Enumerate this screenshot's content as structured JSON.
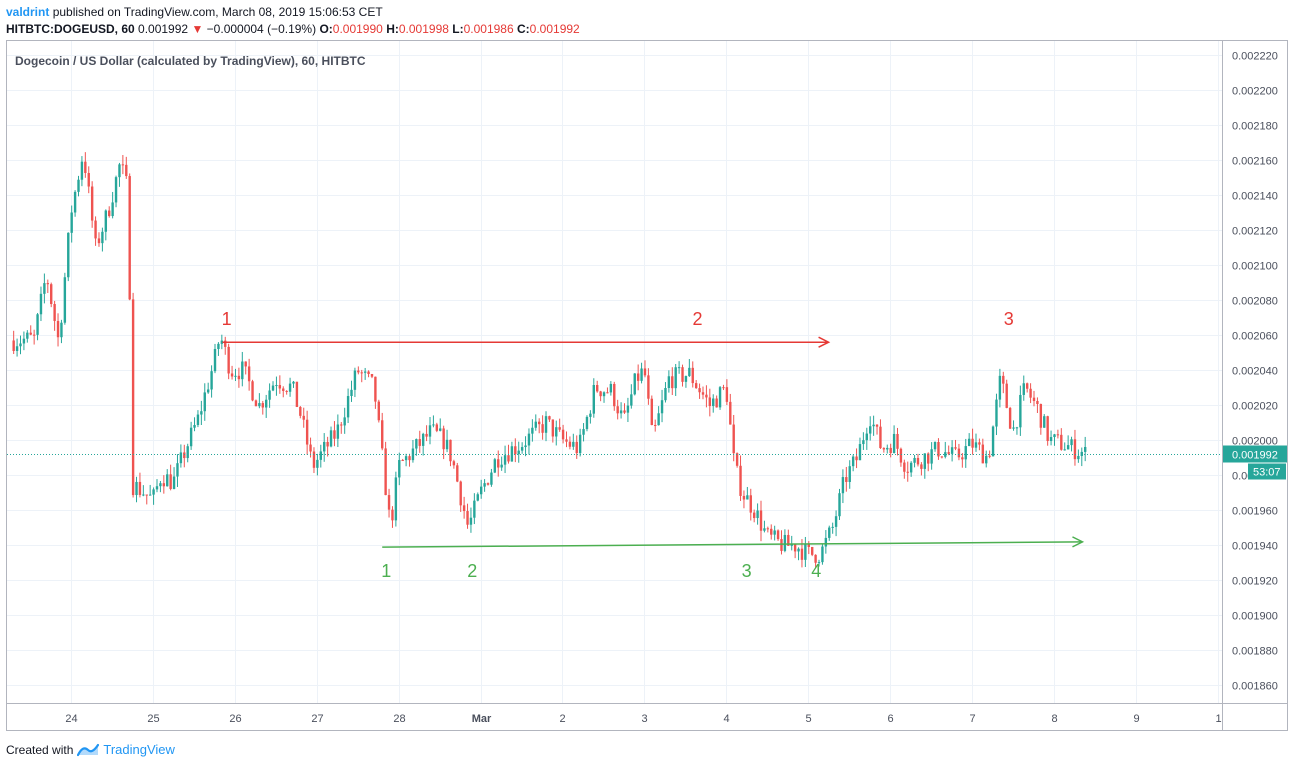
{
  "header": {
    "author": "valdrint",
    "published_text": "published on TradingView.com, March 08, 2019 15:06:53 CET",
    "symbol": "HITBTC:DOGEUSD, 60",
    "last_price": "0.001992",
    "change_arrow": "▼",
    "change": "−0.000004 (−0.19%)",
    "o_label": "O:",
    "o_value": "0.001990",
    "h_label": "H:",
    "h_value": "0.001998",
    "l_label": "L:",
    "l_value": "0.001986",
    "c_label": "C:",
    "c_value": "0.001992"
  },
  "footer": {
    "created_with": "Created with",
    "brand": "TradingView"
  },
  "colors": {
    "up": "#26a69a",
    "down": "#ef5350",
    "resistance": "#e53935",
    "support": "#4caf50",
    "grid": "#edf2f8",
    "price_line": "#26a69a"
  },
  "chart_data": {
    "type": "candlestick",
    "title": "Dogecoin / US Dollar (calculated by TradingView), 60, HITBTC",
    "x_ticks": [
      "24",
      "25",
      "26",
      "27",
      "28",
      "Mar",
      "2",
      "3",
      "4",
      "5",
      "6",
      "7",
      "8",
      "9",
      "1"
    ],
    "y_ticks": [
      "0.002220",
      "0.002200",
      "0.002180",
      "0.002160",
      "0.002140",
      "0.002120",
      "0.002100",
      "0.002080",
      "0.002060",
      "0.002040",
      "0.002020",
      "0.002000",
      "0.001980",
      "0.001960",
      "0.001940",
      "0.001920",
      "0.001900",
      "0.001880",
      "0.001860"
    ],
    "ylim": [
      0.00185,
      0.002228
    ],
    "current_price": "0.001992",
    "countdown": "53:07",
    "resistance": {
      "from_day": 25.85,
      "to_day": 33.25,
      "value": 0.002056,
      "labels": [
        {
          "text": "1",
          "day": 25.9
        },
        {
          "text": "2",
          "day": 31.65
        },
        {
          "text": "3",
          "day": 35.45
        }
      ]
    },
    "support": {
      "from_day": 27.8,
      "to_day": 36.35,
      "from_value": 0.001939,
      "to_value": 0.001942,
      "labels": [
        {
          "text": "1",
          "day": 27.85
        },
        {
          "text": "2",
          "day": 28.9
        },
        {
          "text": "3",
          "day": 32.25
        },
        {
          "text": "4",
          "day": 33.1
        }
      ]
    },
    "price_path": [
      [
        23.3,
        0.002057
      ],
      [
        23.55,
        0.002058
      ],
      [
        23.7,
        0.002095
      ],
      [
        23.85,
        0.002056
      ],
      [
        24.0,
        0.00213
      ],
      [
        24.15,
        0.002165
      ],
      [
        24.3,
        0.00211
      ],
      [
        24.45,
        0.00213
      ],
      [
        24.6,
        0.002158
      ],
      [
        24.7,
        0.002142
      ],
      [
        24.75,
        0.001975
      ],
      [
        24.9,
        0.00197
      ],
      [
        25.0,
        0.001966
      ],
      [
        25.1,
        0.00198
      ],
      [
        25.25,
        0.001976
      ],
      [
        25.4,
        0.001995
      ],
      [
        25.55,
        0.002012
      ],
      [
        25.75,
        0.002045
      ],
      [
        25.82,
        0.00206
      ],
      [
        25.95,
        0.00204
      ],
      [
        26.1,
        0.00204
      ],
      [
        26.3,
        0.00202
      ],
      [
        26.5,
        0.002035
      ],
      [
        26.7,
        0.00203
      ],
      [
        26.8,
        0.002015
      ],
      [
        26.95,
        0.001985
      ],
      [
        27.1,
        0.001995
      ],
      [
        27.25,
        0.002005
      ],
      [
        27.5,
        0.00204
      ],
      [
        27.7,
        0.00203
      ],
      [
        27.8,
        0.00199
      ],
      [
        27.9,
        0.00195
      ],
      [
        28.0,
        0.001985
      ],
      [
        28.2,
        0.001995
      ],
      [
        28.4,
        0.002005
      ],
      [
        28.55,
        0.002
      ],
      [
        28.65,
        0.00199
      ],
      [
        28.75,
        0.00197
      ],
      [
        28.85,
        0.00195
      ],
      [
        29.0,
        0.00197
      ],
      [
        29.2,
        0.00199
      ],
      [
        29.5,
        0.001998
      ],
      [
        29.8,
        0.00201
      ],
      [
        30.0,
        0.002
      ],
      [
        30.2,
        0.001995
      ],
      [
        30.4,
        0.00203
      ],
      [
        30.6,
        0.002028
      ],
      [
        30.75,
        0.00201
      ],
      [
        30.9,
        0.002035
      ],
      [
        31.0,
        0.00204
      ],
      [
        31.1,
        0.002
      ],
      [
        31.3,
        0.002035
      ],
      [
        31.55,
        0.002038
      ],
      [
        31.8,
        0.00202
      ],
      [
        32.0,
        0.00203
      ],
      [
        32.1,
        0.001985
      ],
      [
        32.2,
        0.00197
      ],
      [
        32.35,
        0.00196
      ],
      [
        32.5,
        0.001945
      ],
      [
        32.7,
        0.00194
      ],
      [
        32.85,
        0.00194
      ],
      [
        33.0,
        0.001935
      ],
      [
        33.15,
        0.001935
      ],
      [
        33.3,
        0.00195
      ],
      [
        33.45,
        0.001978
      ],
      [
        33.6,
        0.00199
      ],
      [
        33.75,
        0.002015
      ],
      [
        33.9,
        0.001995
      ],
      [
        34.05,
        0.002
      ],
      [
        34.2,
        0.001985
      ],
      [
        34.4,
        0.00199
      ],
      [
        34.6,
        0.001995
      ],
      [
        34.8,
        0.00199
      ],
      [
        35.0,
        0.001998
      ],
      [
        35.2,
        0.00199
      ],
      [
        35.35,
        0.002035
      ],
      [
        35.5,
        0.002005
      ],
      [
        35.65,
        0.00203
      ],
      [
        35.8,
        0.002018
      ],
      [
        35.95,
        0.002
      ],
      [
        36.1,
        0.001998
      ],
      [
        36.25,
        0.001995
      ],
      [
        36.4,
        0.001992
      ]
    ]
  }
}
